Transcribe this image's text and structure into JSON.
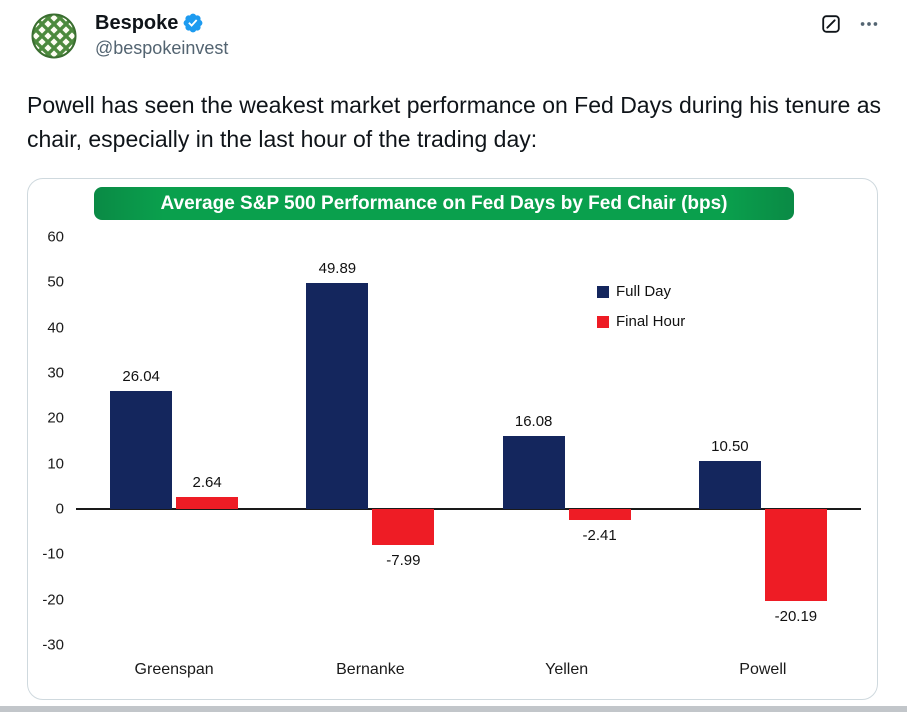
{
  "post": {
    "author": {
      "name": "Bespoke",
      "handle": "@bespokeinvest",
      "verified": true
    },
    "text": "Powell has seen the weakest market performance on Fed Days during his tenure as chair, especially in the last hour of the trading day:",
    "action_icons": [
      "grok-actions-icon",
      "more-icon"
    ]
  },
  "colors": {
    "accent": "#1d9bf0",
    "navy": "#14265d",
    "red": "#ee1c25",
    "green": "#0aa04d"
  },
  "chart_data": {
    "type": "bar",
    "title": "Average S&P 500 Performance on Fed Days by Fed Chair (bps)",
    "categories": [
      "Greenspan",
      "Bernanke",
      "Yellen",
      "Powell"
    ],
    "series": [
      {
        "name": "Full Day",
        "color": "#14265d",
        "values": [
          26.04,
          49.89,
          16.08,
          10.5
        ],
        "labels": [
          "26.04",
          "49.89",
          "16.08",
          "10.50"
        ]
      },
      {
        "name": "Final Hour",
        "color": "#ee1c25",
        "values": [
          2.64,
          -7.99,
          -2.41,
          -20.19
        ],
        "labels": [
          "2.64",
          "-7.99",
          "-2.41",
          "-20.19"
        ]
      }
    ],
    "xlabel": "",
    "ylabel": "",
    "ylim": [
      -30,
      60
    ],
    "ytick_step": 10,
    "grid": false,
    "legend_position": "top-right"
  }
}
